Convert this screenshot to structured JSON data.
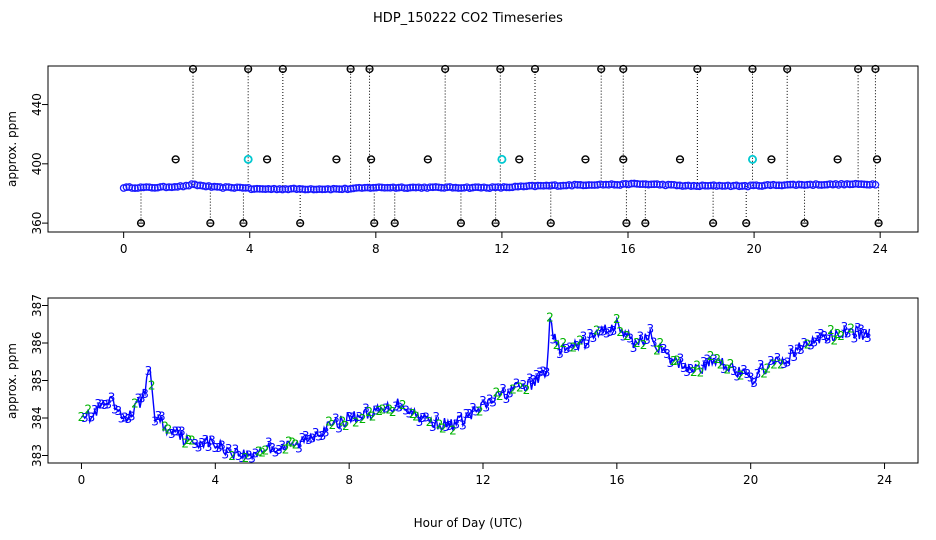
{
  "title": "HDP_150222  CO2 Timeseries",
  "xlabel": "Hour of Day (UTC)",
  "chart_data": [
    {
      "type": "scatter",
      "panel": "top",
      "ylabel": "approx. ppm",
      "xlim": [
        -2.4,
        25.2
      ],
      "ylim": [
        354,
        466
      ],
      "x_ticks": [
        0,
        4,
        8,
        12,
        16,
        20,
        24
      ],
      "y_ticks": [
        360,
        400,
        440
      ],
      "grid": false,
      "legend": "none",
      "colors": {
        "points": "#1a1aff",
        "outliers": "#000000",
        "highlight": "#00c8d0",
        "spikes": "#000000"
      },
      "series": [
        {
          "x": [
            0,
            1,
            2,
            2.15,
            3,
            3.9,
            4,
            5,
            6,
            7,
            7.9,
            8,
            9,
            10,
            11,
            11.9,
            12,
            13,
            14,
            15,
            15.9,
            16,
            17,
            18,
            19,
            19.8,
            20,
            21,
            22,
            23,
            23.9
          ],
          "y": [
            384,
            384,
            385,
            386,
            384,
            384,
            383,
            383,
            383,
            383,
            384,
            384,
            384,
            384,
            384,
            384,
            384,
            385,
            385.5,
            386,
            386,
            386.5,
            386,
            385,
            385.3,
            385,
            385.3,
            385.8,
            386,
            386.2,
            386.2
          ]
        }
      ],
      "outliers_high": [
        2.2,
        3.95,
        5.05,
        7.2,
        7.8,
        10.2,
        11.95,
        13.05,
        15.15,
        15.85,
        18.2,
        19.95,
        21.05,
        23.3,
        23.85
      ],
      "outliers_low": [
        0.55,
        2.75,
        3.8,
        5.6,
        7.95,
        8.6,
        10.7,
        11.8,
        13.55,
        15.95,
        16.55,
        18.7,
        19.75,
        21.6,
        23.95
      ],
      "outliers_mid": [
        1.65,
        4.55,
        6.75,
        7.85,
        9.65,
        12.55,
        14.65,
        15.85,
        17.65,
        20.55,
        22.65,
        23.9
      ],
      "highlight_x": [
        3.95,
        12,
        19.95
      ]
    },
    {
      "type": "line",
      "panel": "bottom",
      "ylabel": "approx. ppm",
      "xlim": [
        -1,
        25
      ],
      "ylim": [
        382.8,
        387.2
      ],
      "x_ticks": [
        0,
        4,
        8,
        12,
        16,
        20,
        24
      ],
      "y_ticks": [
        383,
        384,
        385,
        386,
        387
      ],
      "grid": false,
      "legend": "none",
      "colors": {
        "line": "#0000ff",
        "label_2": "#00b400",
        "label_3": "#0000ff"
      },
      "point_labels": [
        "2",
        "3"
      ],
      "series": [
        {
          "x": [
            0,
            0.3,
            0.6,
            0.9,
            1.2,
            1.5,
            1.8,
            2.0,
            2.05,
            2.2,
            2.4,
            2.6,
            2.8,
            3.0,
            3.3,
            3.6,
            4.0,
            4.5,
            5.0,
            5.5,
            6.0,
            6.5,
            7.0,
            7.5,
            8.0,
            8.5,
            9.0,
            9.5,
            10.0,
            10.5,
            11.0,
            11.5,
            12.0,
            12.5,
            13.0,
            13.5,
            13.9,
            14.0,
            14.2,
            14.5,
            15.0,
            15.5,
            16.0,
            16.5,
            17.0,
            17.5,
            18.0,
            18.5,
            19.0,
            19.5,
            20.0,
            20.5,
            21.0,
            21.5,
            22.0,
            22.5,
            23.0,
            23.5
          ],
          "y": [
            384.2,
            384.0,
            384.3,
            384.4,
            384.0,
            384.1,
            384.5,
            385.1,
            385.3,
            384.0,
            383.9,
            383.6,
            383.8,
            383.5,
            383.3,
            383.4,
            383.3,
            383.1,
            383.0,
            383.2,
            383.2,
            383.3,
            383.6,
            383.8,
            384.0,
            384.1,
            384.2,
            384.4,
            384.1,
            383.9,
            383.8,
            384.0,
            384.3,
            384.6,
            384.8,
            384.9,
            385.3,
            386.6,
            385.9,
            385.8,
            386.0,
            386.3,
            386.5,
            386.0,
            386.2,
            385.6,
            385.4,
            385.3,
            385.6,
            385.3,
            385.0,
            385.4,
            385.5,
            385.9,
            386.1,
            386.2,
            386.3,
            386.2
          ]
        }
      ]
    }
  ]
}
